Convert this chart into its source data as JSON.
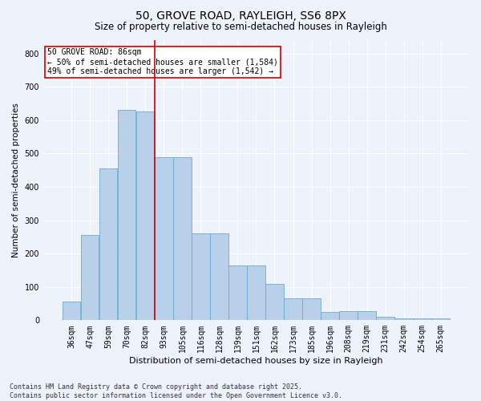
{
  "title1": "50, GROVE ROAD, RAYLEIGH, SS6 8PX",
  "title2": "Size of property relative to semi-detached houses in Rayleigh",
  "xlabel": "Distribution of semi-detached houses by size in Rayleigh",
  "ylabel": "Number of semi-detached properties",
  "categories": [
    "36sqm",
    "47sqm",
    "59sqm",
    "70sqm",
    "82sqm",
    "93sqm",
    "105sqm",
    "116sqm",
    "128sqm",
    "139sqm",
    "151sqm",
    "162sqm",
    "173sqm",
    "185sqm",
    "196sqm",
    "208sqm",
    "219sqm",
    "231sqm",
    "242sqm",
    "254sqm",
    "265sqm"
  ],
  "values": [
    55,
    255,
    455,
    630,
    625,
    490,
    490,
    260,
    260,
    165,
    165,
    110,
    65,
    65,
    25,
    28,
    28,
    10,
    5,
    5,
    5
  ],
  "bar_color": "#b8d0ea",
  "bar_edge_color": "#6aaad4",
  "vline_color": "#cc0000",
  "annotation_text": "50 GROVE ROAD: 86sqm\n← 50% of semi-detached houses are smaller (1,584)\n49% of semi-detached houses are larger (1,542) →",
  "annotation_box_color": "white",
  "annotation_box_edge_color": "#cc0000",
  "ylim": [
    0,
    840
  ],
  "yticks": [
    0,
    100,
    200,
    300,
    400,
    500,
    600,
    700,
    800
  ],
  "bg_color": "#eef2fb",
  "plot_bg_color": "#eef2fb",
  "footer": "Contains HM Land Registry data © Crown copyright and database right 2025.\nContains public sector information licensed under the Open Government Licence v3.0.",
  "title1_fontsize": 10,
  "title2_fontsize": 8.5,
  "xlabel_fontsize": 8,
  "ylabel_fontsize": 7.5,
  "tick_fontsize": 7,
  "footer_fontsize": 6,
  "annotation_fontsize": 7
}
